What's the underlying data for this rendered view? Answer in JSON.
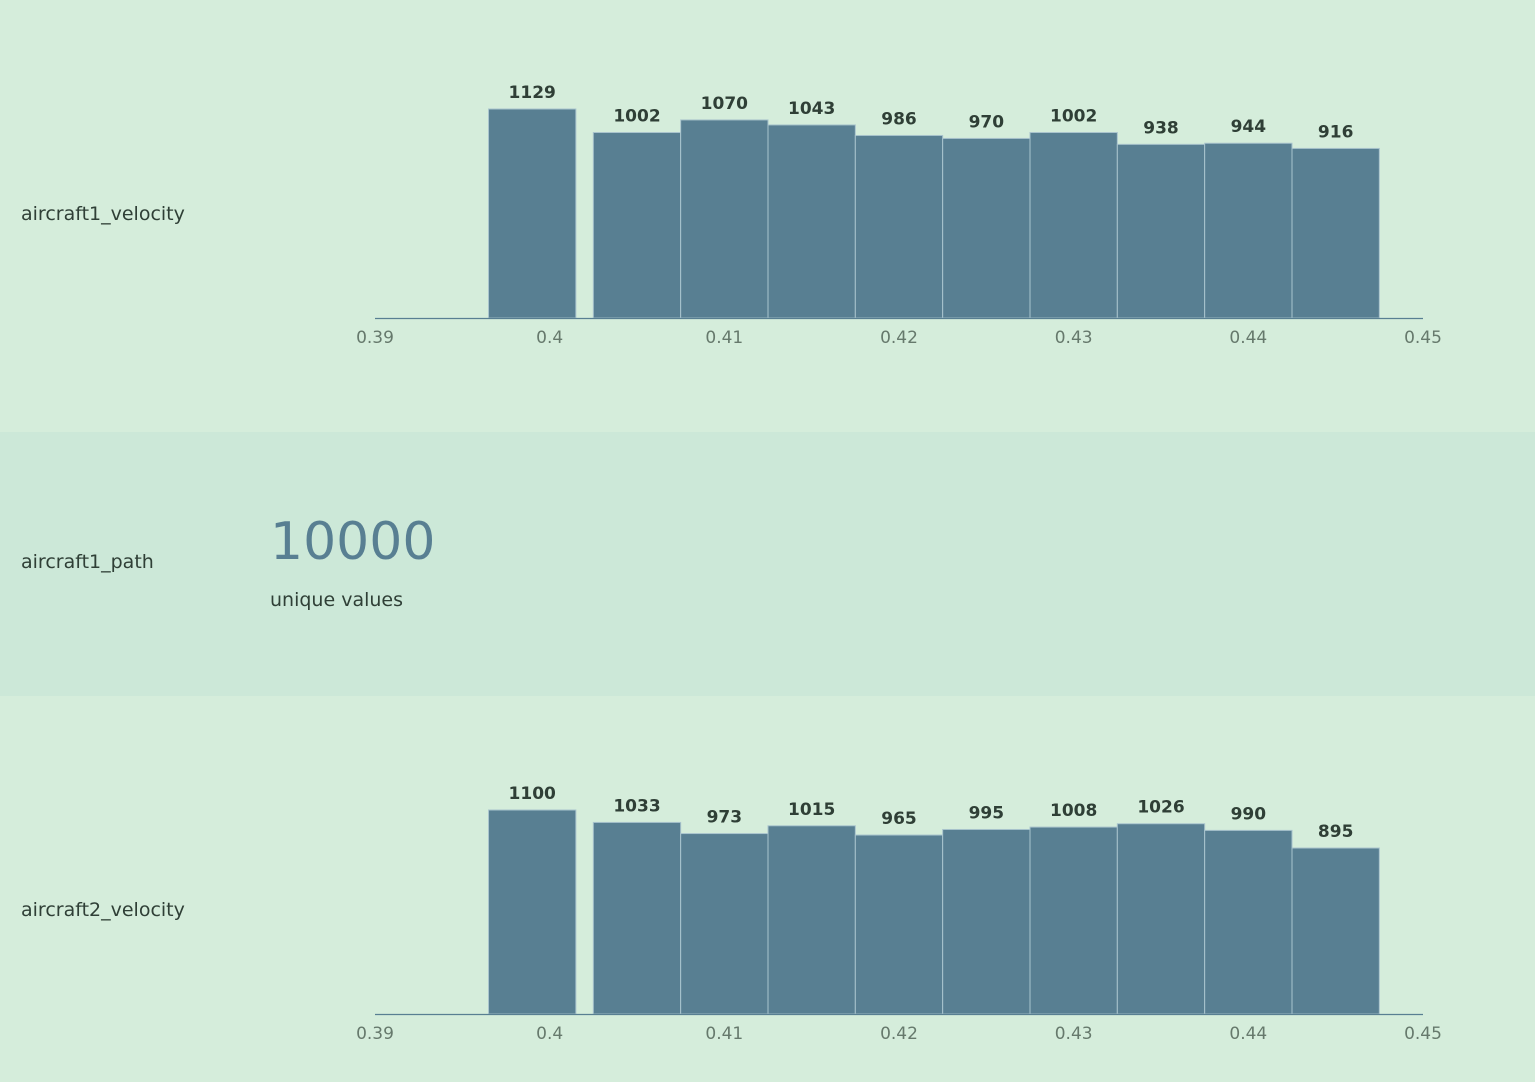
{
  "colors": {
    "bar": "#587f92",
    "bar_edge": "#a9c4cd",
    "axis": "#587f92",
    "label": "#2f3f36",
    "tick": "#66796c",
    "big_number": "#587f92"
  },
  "rows": [
    {
      "label": "aircraft1_velocity",
      "kind": "histogram"
    },
    {
      "label": "aircraft1_path",
      "kind": "unique",
      "value": "10000",
      "caption": "unique values"
    },
    {
      "label": "aircraft2_velocity",
      "kind": "histogram"
    }
  ],
  "chart_data": [
    {
      "type": "bar",
      "title": "aircraft1_velocity",
      "xlim": [
        0.39,
        0.45
      ],
      "ylim": [
        0,
        1129
      ],
      "xticks": [
        "0.39",
        "0.4",
        "0.41",
        "0.42",
        "0.43",
        "0.44",
        "0.45"
      ],
      "xtick_values": [
        0.39,
        0.4,
        0.41,
        0.42,
        0.43,
        0.44,
        0.45
      ],
      "bins": [
        {
          "x0": 0.3965,
          "x1": 0.4015,
          "value": 1129
        },
        {
          "x0": 0.4025,
          "x1": 0.4075,
          "value": 1002
        },
        {
          "x0": 0.4075,
          "x1": 0.4125,
          "value": 1070
        },
        {
          "x0": 0.4125,
          "x1": 0.4175,
          "value": 1043
        },
        {
          "x0": 0.4175,
          "x1": 0.4225,
          "value": 986
        },
        {
          "x0": 0.4225,
          "x1": 0.4275,
          "value": 970
        },
        {
          "x0": 0.4275,
          "x1": 0.4325,
          "value": 1002
        },
        {
          "x0": 0.4325,
          "x1": 0.4375,
          "value": 938
        },
        {
          "x0": 0.4375,
          "x1": 0.4425,
          "value": 944
        },
        {
          "x0": 0.4425,
          "x1": 0.4475,
          "value": 916
        }
      ]
    },
    {
      "type": "bar",
      "title": "aircraft2_velocity",
      "xlim": [
        0.39,
        0.45
      ],
      "ylim": [
        0,
        1100
      ],
      "xticks": [
        "0.39",
        "0.4",
        "0.41",
        "0.42",
        "0.43",
        "0.44",
        "0.45"
      ],
      "xtick_values": [
        0.39,
        0.4,
        0.41,
        0.42,
        0.43,
        0.44,
        0.45
      ],
      "bins": [
        {
          "x0": 0.3965,
          "x1": 0.4015,
          "value": 1100
        },
        {
          "x0": 0.4025,
          "x1": 0.4075,
          "value": 1033
        },
        {
          "x0": 0.4075,
          "x1": 0.4125,
          "value": 973
        },
        {
          "x0": 0.4125,
          "x1": 0.4175,
          "value": 1015
        },
        {
          "x0": 0.4175,
          "x1": 0.4225,
          "value": 965
        },
        {
          "x0": 0.4225,
          "x1": 0.4275,
          "value": 995
        },
        {
          "x0": 0.4275,
          "x1": 0.4325,
          "value": 1008
        },
        {
          "x0": 0.4325,
          "x1": 0.4375,
          "value": 1026
        },
        {
          "x0": 0.4375,
          "x1": 0.4425,
          "value": 990
        },
        {
          "x0": 0.4425,
          "x1": 0.4475,
          "value": 895
        }
      ]
    }
  ]
}
